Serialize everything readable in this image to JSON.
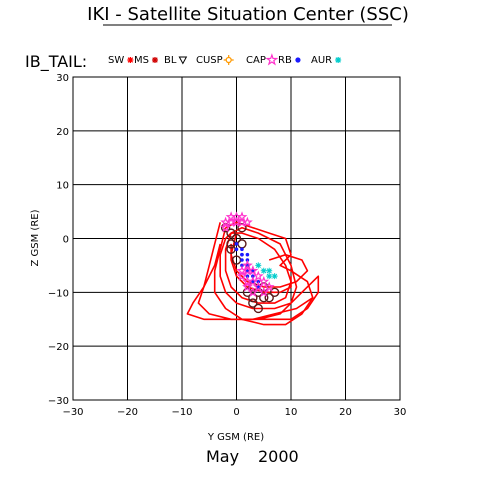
{
  "title": "IKI - Satellite Situation Center (SSC)",
  "satellite_label": "IB_TAIL:",
  "date": {
    "month": "May",
    "year": "2000"
  },
  "legend": [
    {
      "label": "SW",
      "symbol_name": "x-mark-icon",
      "color": "#ff0000"
    },
    {
      "label": "MS",
      "symbol_name": "asterisk-icon",
      "color": "#d00000"
    },
    {
      "label": "BL",
      "symbol_name": "triangle-down-icon",
      "color": "#000000"
    },
    {
      "label": "CUSP",
      "symbol_name": "sun-icon",
      "color": "#ff9900"
    },
    {
      "label": "CAP",
      "symbol_name": "star-icon",
      "color": "#ff33cc"
    },
    {
      "label": "RB",
      "symbol_name": "dot-icon",
      "color": "#1a1aff"
    },
    {
      "label": "AUR",
      "symbol_name": "asterisk-icon",
      "color": "#00cccc"
    }
  ],
  "chart_data": {
    "type": "scatter",
    "xlabel": "Y GSM (RE)",
    "ylabel": "Z GSM (RE)",
    "xlim": [
      -30,
      30
    ],
    "ylim": [
      -30,
      30
    ],
    "xticks": [
      -30,
      -20,
      -10,
      0,
      10,
      20,
      30
    ],
    "yticks": [
      -30,
      -20,
      -10,
      0,
      10,
      20,
      30
    ],
    "grid": true,
    "series": [
      {
        "name": "MS",
        "color": "#ff0000",
        "loops": [
          [
            [
              -2,
              0
            ],
            [
              -3,
              -3
            ],
            [
              -3,
              -7
            ],
            [
              -2,
              -10
            ],
            [
              0,
              -12
            ],
            [
              3,
              -13
            ],
            [
              7,
              -13
            ],
            [
              10,
              -12
            ],
            [
              11,
              -9
            ],
            [
              10,
              -5
            ],
            [
              8,
              -1
            ],
            [
              4,
              1
            ],
            [
              1,
              2
            ],
            [
              -1,
              1
            ],
            [
              -2,
              0
            ]
          ],
          [
            [
              -1,
              1
            ],
            [
              -2,
              -2
            ],
            [
              -2,
              -6
            ],
            [
              -1,
              -9
            ],
            [
              1,
              -11
            ],
            [
              4,
              -12
            ],
            [
              7,
              -12
            ],
            [
              9,
              -11
            ],
            [
              10,
              -8
            ],
            [
              9,
              -5
            ],
            [
              7,
              -2
            ],
            [
              4,
              0
            ],
            [
              1,
              1
            ],
            [
              -1,
              1
            ]
          ],
          [
            [
              -2,
              2
            ],
            [
              -3,
              -2
            ],
            [
              -4,
              -6
            ],
            [
              -4,
              -10
            ],
            [
              -2,
              -13
            ],
            [
              1,
              -15
            ],
            [
              5,
              -16
            ],
            [
              9,
              -16
            ],
            [
              12,
              -14
            ],
            [
              14,
              -11
            ],
            [
              13,
              -8
            ],
            [
              10,
              -6
            ],
            [
              8,
              -5
            ],
            [
              10,
              -3
            ],
            [
              9,
              0
            ],
            [
              6,
              1
            ],
            [
              3,
              2
            ],
            [
              0,
              3
            ],
            [
              -2,
              2
            ]
          ],
          [
            [
              -1,
              -1
            ],
            [
              -1,
              -4
            ],
            [
              0,
              -7
            ],
            [
              2,
              -9
            ],
            [
              5,
              -10
            ],
            [
              8,
              -10
            ],
            [
              10,
              -9
            ],
            [
              10,
              -7
            ]
          ],
          [
            [
              -3,
              -1
            ],
            [
              -4,
              -5
            ],
            [
              -6,
              -9
            ],
            [
              -8,
              -12
            ],
            [
              -9,
              -14
            ],
            [
              -6,
              -15
            ],
            [
              -2,
              -15
            ],
            [
              2,
              -15
            ],
            [
              6,
              -15
            ],
            [
              10,
              -15
            ],
            [
              13,
              -13
            ],
            [
              15,
              -10
            ],
            [
              15,
              -7
            ],
            [
              12,
              -10
            ],
            [
              8,
              -14
            ],
            [
              4,
              -15
            ]
          ],
          [
            [
              -3,
              3
            ],
            [
              -4,
              -1
            ],
            [
              -5,
              -5
            ],
            [
              -6,
              -9
            ],
            [
              -7,
              -12
            ],
            [
              -5,
              -14
            ],
            [
              -1,
              -15
            ],
            [
              3,
              -15
            ],
            [
              7,
              -14
            ],
            [
              11,
              -13
            ],
            [
              14,
              -11
            ]
          ],
          [
            [
              0,
              1
            ],
            [
              -1,
              -3
            ],
            [
              0,
              -6
            ],
            [
              2,
              -8
            ],
            [
              5,
              -9
            ],
            [
              8,
              -9
            ],
            [
              11,
              -8
            ],
            [
              13,
              -6
            ],
            [
              12,
              -4
            ],
            [
              9,
              -3
            ],
            [
              6,
              -4
            ]
          ]
        ]
      },
      {
        "name": "BL",
        "color": "#5a1a1a",
        "points": [
          [
            -2,
            2
          ],
          [
            -1,
            1
          ],
          [
            0,
            0
          ],
          [
            1,
            -1
          ],
          [
            -1,
            -2
          ],
          [
            0,
            -4
          ],
          [
            3,
            -9
          ],
          [
            4,
            -10
          ],
          [
            3,
            -11
          ],
          [
            5,
            -11
          ],
          [
            3,
            -12
          ],
          [
            6,
            -11
          ],
          [
            4,
            -13
          ],
          [
            7,
            -10
          ],
          [
            2,
            -10
          ],
          [
            5,
            -9
          ],
          [
            -1,
            -1
          ],
          [
            1,
            2
          ]
        ]
      },
      {
        "name": "RB",
        "color": "#1a1aff",
        "points": [
          [
            0,
            -1
          ],
          [
            1,
            -2
          ],
          [
            1,
            -3
          ],
          [
            1,
            -4
          ],
          [
            2,
            -4
          ],
          [
            1,
            -5
          ],
          [
            2,
            -5
          ],
          [
            2,
            -6
          ],
          [
            3,
            -6
          ],
          [
            2,
            -7
          ],
          [
            3,
            -7
          ],
          [
            4,
            -8
          ],
          [
            3,
            -8
          ],
          [
            4,
            -9
          ],
          [
            1,
            -3
          ],
          [
            2,
            -3
          ],
          [
            0,
            -2
          ]
        ]
      },
      {
        "name": "CAP",
        "color": "#ff33cc",
        "points": [
          [
            -2,
            3
          ],
          [
            -1,
            3
          ],
          [
            0,
            3
          ],
          [
            1,
            3
          ],
          [
            -1,
            4
          ],
          [
            0,
            4
          ],
          [
            1,
            4
          ],
          [
            -2,
            2
          ],
          [
            2,
            3
          ],
          [
            2,
            -6
          ],
          [
            3,
            -6
          ],
          [
            4,
            -7
          ],
          [
            3,
            -8
          ],
          [
            2,
            -8
          ],
          [
            5,
            -8
          ],
          [
            4,
            -9
          ],
          [
            2,
            -9
          ],
          [
            3,
            -10
          ],
          [
            1,
            -7
          ],
          [
            5,
            -10
          ],
          [
            6,
            -9
          ],
          [
            2,
            -5
          ],
          [
            1,
            -6
          ]
        ]
      },
      {
        "name": "AUR",
        "color": "#00cccc",
        "points": [
          [
            5,
            -6
          ],
          [
            6,
            -7
          ],
          [
            6,
            -6
          ],
          [
            7,
            -7
          ],
          [
            4,
            -5
          ]
        ]
      }
    ]
  }
}
